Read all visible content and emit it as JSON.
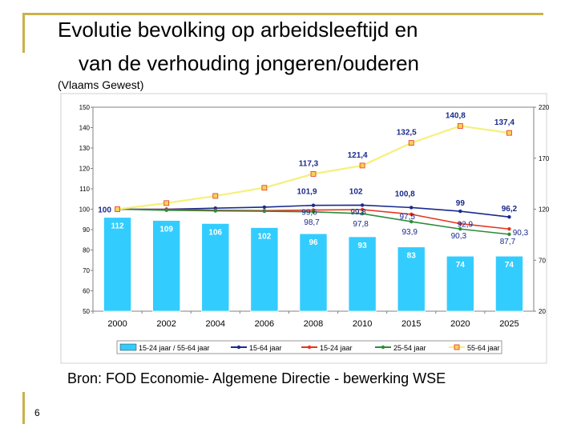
{
  "slide": {
    "title_line1": "Evolutie bevolking op arbeidsleeftijd en",
    "title_line2": "van de verhouding jongeren/ouderen",
    "subtitle": "(Vlaams Gewest)",
    "source": "Bron: FOD Economie- Algemene Directie - bewerking WSE",
    "page_number": "6"
  },
  "chart_data": {
    "type": "bar",
    "categories": [
      "2000",
      "2002",
      "2004",
      "2006",
      "2008",
      "2010",
      "2015",
      "2020",
      "2025"
    ],
    "y_left": {
      "min": 50,
      "max": 150,
      "ticks": [
        50,
        60,
        70,
        80,
        90,
        100,
        110,
        120,
        130,
        140,
        150
      ]
    },
    "y_right": {
      "min": 20,
      "max": 220,
      "ticks": [
        20,
        70,
        120,
        170,
        220
      ]
    },
    "bar_series": {
      "name": "15-24 jaar / 55-64 jaar",
      "axis": "right",
      "color": "#33ccff",
      "values": [
        112,
        109,
        106,
        102,
        96,
        93,
        83,
        74,
        74
      ],
      "labels": [
        "112",
        "109",
        "106",
        "102",
        "96",
        "93",
        "83",
        "74",
        "74"
      ]
    },
    "line_series": [
      {
        "name": "15-64 jaar",
        "color": "#1a2a8c",
        "values": [
          100,
          100,
          100.5,
          101,
          101.9,
          102,
          100.8,
          99,
          96.2
        ],
        "labels": [
          "",
          "",
          "",
          "",
          "101,9",
          "102",
          "100,8",
          "99",
          "96,2"
        ]
      },
      {
        "name": "15-24 jaar",
        "color": "#e8341c",
        "values": [
          100,
          99.8,
          99.5,
          99.3,
          99.6,
          99.8,
          97.5,
          92.9,
          90.3
        ],
        "labels": [
          "",
          "",
          "",
          "",
          "99,6",
          "99,8",
          "97,5",
          "92,9",
          "90,3"
        ]
      },
      {
        "name": "25-54 jaar",
        "color": "#2e8b3a",
        "values": [
          100,
          99.5,
          99.2,
          99,
          98.7,
          97.8,
          93.9,
          90.3,
          87.7
        ],
        "labels": [
          "",
          "",
          "",
          "",
          "98,7",
          "97,8",
          "93,9",
          "90,3",
          "87,7"
        ]
      },
      {
        "name": "55-64 jaar",
        "color": "#f5f07a",
        "values": [
          100,
          103,
          106.5,
          110.5,
          117.3,
          121.4,
          132.5,
          140.8,
          137.4
        ],
        "labels": [
          "100",
          "",
          "",
          "",
          "117,3",
          "121,4",
          "132,5",
          "140,8",
          "137,4"
        ]
      }
    ],
    "legend": [
      "15-24 jaar / 55-64 jaar",
      "15-64 jaar",
      "15-24 jaar",
      "25-54 jaar",
      "55-64 jaar"
    ],
    "legend_position": "bottom",
    "title": "",
    "xlabel": "",
    "ylabel": ""
  }
}
